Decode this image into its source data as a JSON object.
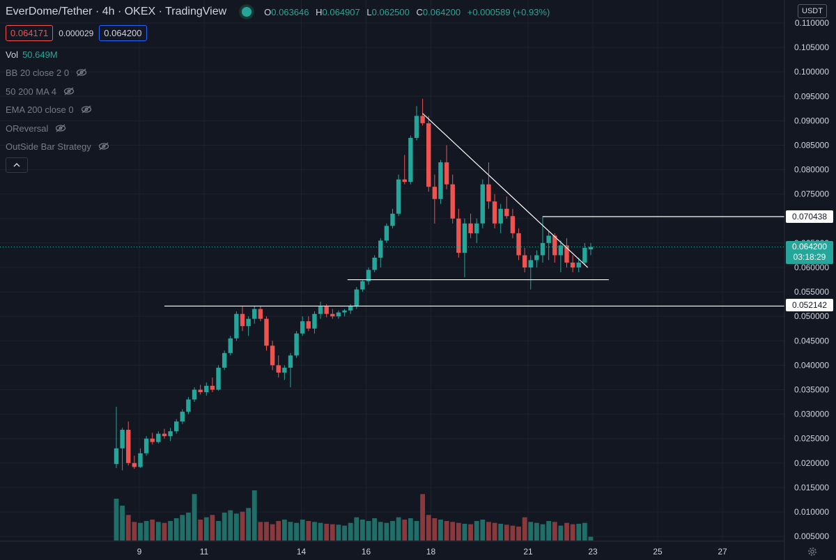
{
  "header": {
    "title": "EverDome/Tether · 4h · OKEX · TradingView",
    "ohlc": {
      "o": "0.063646",
      "h": "0.064907",
      "l": "0.062500",
      "c": "0.064200",
      "change": "+0.000589 (+0.93%)"
    },
    "labels": {
      "o": "O",
      "h": "H",
      "l": "L",
      "c": "C"
    }
  },
  "quotes": {
    "bid": "0.064171",
    "spread": "0.000029",
    "ask": "0.064200"
  },
  "volume": {
    "label": "Vol",
    "value": "50.649M"
  },
  "indicators": [
    {
      "label": "BB 20 close 2 0"
    },
    {
      "label": "50 200 MA 4"
    },
    {
      "label": "EMA 200 close 0"
    },
    {
      "label": "OReversal"
    },
    {
      "label": "OutSide Bar Strategy"
    }
  ],
  "currency": "USDT",
  "price_labels": {
    "resistance": "0.070438",
    "current": "0.064200",
    "countdown": "03:18:29",
    "support": "0.052142"
  },
  "colors": {
    "bg": "#131722",
    "up": "#26a69a",
    "down": "#ef5350",
    "text": "#d1d4dc",
    "grid": "#1e222d"
  },
  "chart_data": {
    "type": "candlestick",
    "y_ticks": [
      "0.110000",
      "0.105000",
      "0.100000",
      "0.095000",
      "0.090000",
      "0.085000",
      "0.080000",
      "0.075000",
      "0.070000",
      "0.065000",
      "0.060000",
      "0.055000",
      "0.050000",
      "0.045000",
      "0.040000",
      "0.035000",
      "0.030000",
      "0.025000",
      "0.020000",
      "0.015000",
      "0.010000",
      "0.005000"
    ],
    "x_ticks": [
      "9",
      "11",
      "14",
      "16",
      "18",
      "21",
      "23",
      "25",
      "27"
    ],
    "candles": [
      [
        0.0198,
        0.0315,
        0.019,
        0.023
      ],
      [
        0.023,
        0.0272,
        0.0185,
        0.0268
      ],
      [
        0.0268,
        0.0285,
        0.0195,
        0.02
      ],
      [
        0.02,
        0.0215,
        0.0188,
        0.0192
      ],
      [
        0.0192,
        0.023,
        0.019,
        0.022
      ],
      [
        0.022,
        0.0255,
        0.0215,
        0.025
      ],
      [
        0.025,
        0.0262,
        0.0238,
        0.0243
      ],
      [
        0.0243,
        0.0265,
        0.024,
        0.026
      ],
      [
        0.026,
        0.027,
        0.025,
        0.0255
      ],
      [
        0.0255,
        0.0272,
        0.0245,
        0.0265
      ],
      [
        0.0265,
        0.029,
        0.026,
        0.0285
      ],
      [
        0.0285,
        0.031,
        0.028,
        0.0305
      ],
      [
        0.0305,
        0.0335,
        0.03,
        0.033
      ],
      [
        0.033,
        0.0355,
        0.0325,
        0.035
      ],
      [
        0.035,
        0.036,
        0.034,
        0.0345
      ],
      [
        0.0345,
        0.0365,
        0.0338,
        0.0358
      ],
      [
        0.0358,
        0.0375,
        0.0345,
        0.035
      ],
      [
        0.035,
        0.04,
        0.0348,
        0.0395
      ],
      [
        0.0395,
        0.043,
        0.039,
        0.0425
      ],
      [
        0.0425,
        0.046,
        0.042,
        0.0455
      ],
      [
        0.0455,
        0.051,
        0.045,
        0.0505
      ],
      [
        0.0505,
        0.052,
        0.047,
        0.048
      ],
      [
        0.048,
        0.05,
        0.046,
        0.0495
      ],
      [
        0.0495,
        0.0522,
        0.0485,
        0.0515
      ],
      [
        0.0515,
        0.052,
        0.049,
        0.0495
      ],
      [
        0.0495,
        0.05,
        0.043,
        0.044
      ],
      [
        0.044,
        0.045,
        0.039,
        0.04
      ],
      [
        0.04,
        0.042,
        0.0375,
        0.0385
      ],
      [
        0.0385,
        0.04,
        0.037,
        0.0395
      ],
      [
        0.0395,
        0.0425,
        0.0355,
        0.042
      ],
      [
        0.042,
        0.047,
        0.0415,
        0.0465
      ],
      [
        0.0465,
        0.05,
        0.046,
        0.049
      ],
      [
        0.049,
        0.05,
        0.047,
        0.0475
      ],
      [
        0.0475,
        0.051,
        0.0465,
        0.0505
      ],
      [
        0.0505,
        0.053,
        0.0495,
        0.052
      ],
      [
        0.052,
        0.0525,
        0.0498,
        0.0505
      ],
      [
        0.0505,
        0.0515,
        0.0495,
        0.05
      ],
      [
        0.05,
        0.0512,
        0.0495,
        0.0508
      ],
      [
        0.0508,
        0.0515,
        0.05,
        0.0512
      ],
      [
        0.0512,
        0.0525,
        0.0505,
        0.052
      ],
      [
        0.052,
        0.056,
        0.0515,
        0.0555
      ],
      [
        0.0555,
        0.0575,
        0.055,
        0.0572
      ],
      [
        0.0572,
        0.06,
        0.0565,
        0.0595
      ],
      [
        0.0595,
        0.0625,
        0.059,
        0.062
      ],
      [
        0.062,
        0.066,
        0.06,
        0.0655
      ],
      [
        0.0655,
        0.069,
        0.065,
        0.0685
      ],
      [
        0.0685,
        0.072,
        0.068,
        0.071
      ],
      [
        0.071,
        0.079,
        0.0705,
        0.078
      ],
      [
        0.078,
        0.083,
        0.077,
        0.0775
      ],
      [
        0.0775,
        0.087,
        0.077,
        0.0865
      ],
      [
        0.0865,
        0.093,
        0.086,
        0.091
      ],
      [
        0.091,
        0.0945,
        0.089,
        0.0895
      ],
      [
        0.0895,
        0.091,
        0.0755,
        0.0765
      ],
      [
        0.0765,
        0.079,
        0.069,
        0.074
      ],
      [
        0.074,
        0.082,
        0.073,
        0.0815
      ],
      [
        0.0815,
        0.085,
        0.076,
        0.077
      ],
      [
        0.077,
        0.079,
        0.069,
        0.07
      ],
      [
        0.07,
        0.072,
        0.062,
        0.063
      ],
      [
        0.063,
        0.07,
        0.058,
        0.069
      ],
      [
        0.069,
        0.071,
        0.066,
        0.067
      ],
      [
        0.067,
        0.07,
        0.065,
        0.069
      ],
      [
        0.069,
        0.078,
        0.068,
        0.077
      ],
      [
        0.077,
        0.0815,
        0.072,
        0.0735
      ],
      [
        0.0735,
        0.075,
        0.068,
        0.069
      ],
      [
        0.069,
        0.073,
        0.067,
        0.072
      ],
      [
        0.072,
        0.0745,
        0.07,
        0.0705
      ],
      [
        0.0705,
        0.072,
        0.066,
        0.067
      ],
      [
        0.067,
        0.068,
        0.0615,
        0.0625
      ],
      [
        0.0625,
        0.064,
        0.059,
        0.06
      ],
      [
        0.06,
        0.0625,
        0.0555,
        0.0615
      ],
      [
        0.0615,
        0.0635,
        0.06,
        0.0625
      ],
      [
        0.0625,
        0.0705,
        0.061,
        0.065
      ],
      [
        0.065,
        0.0675,
        0.0615,
        0.0665
      ],
      [
        0.0665,
        0.067,
        0.061,
        0.0625
      ],
      [
        0.0625,
        0.0655,
        0.059,
        0.0645
      ],
      [
        0.0645,
        0.066,
        0.06,
        0.061
      ],
      [
        0.061,
        0.0625,
        0.059,
        0.06
      ],
      [
        0.06,
        0.062,
        0.059,
        0.061
      ],
      [
        0.061,
        0.065,
        0.0605,
        0.064
      ],
      [
        0.0637,
        0.065,
        0.0625,
        0.0642
      ]
    ],
    "volumes": [
      90,
      75,
      55,
      40,
      38,
      42,
      45,
      40,
      38,
      42,
      48,
      55,
      60,
      100,
      45,
      50,
      55,
      42,
      60,
      65,
      58,
      62,
      70,
      108,
      40,
      40,
      35,
      42,
      45,
      40,
      38,
      45,
      42,
      40,
      38,
      36,
      35,
      34,
      32,
      38,
      50,
      45,
      42,
      48,
      40,
      38,
      42,
      50,
      45,
      48,
      42,
      100,
      55,
      48,
      45,
      42,
      40,
      38,
      36,
      35,
      42,
      45,
      40,
      38,
      36,
      34,
      32,
      30,
      50,
      40,
      38,
      35,
      42,
      40,
      32,
      38,
      35,
      36,
      38,
      8
    ],
    "trendlines": [
      {
        "from": [
          51,
          0.0915
        ],
        "to": [
          78.5,
          0.06
        ]
      },
      {
        "from": [
          38.5,
          0.0575
        ],
        "to": [
          82,
          0.0575
        ]
      },
      {
        "from": [
          8,
          0.0521
        ],
        "to": [
          100,
          0.0521
        ]
      },
      {
        "from": [
          71,
          0.0704
        ],
        "to": [
          100,
          0.0704
        ]
      }
    ],
    "y_range": [
      0.0035,
      0.1125
    ],
    "volume_max": 108
  }
}
